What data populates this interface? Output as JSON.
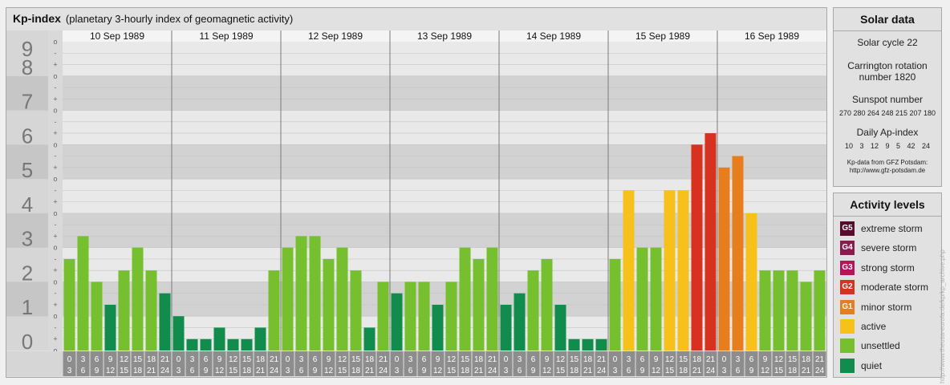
{
  "header": {
    "title": "Kp-index",
    "subtitle": "(planetary 3-hourly index of geomagnetic activity)"
  },
  "chart_data": {
    "type": "bar",
    "title": "Kp-index",
    "subtitle": "(planetary 3-hourly index of geomagnetic activity)",
    "ylim": [
      0,
      9
    ],
    "y_ticks": [
      "0",
      "1",
      "2",
      "3",
      "4",
      "5",
      "6",
      "7",
      "8",
      "9"
    ],
    "sub_ticks": [
      "+",
      "o",
      "-"
    ],
    "days": [
      "10 Sep 1989",
      "11 Sep 1989",
      "12 Sep 1989",
      "13 Sep 1989",
      "14 Sep 1989",
      "15 Sep 1989",
      "16 Sep 1989"
    ],
    "interval_top": [
      "0",
      "3",
      "6",
      "9",
      "12",
      "15",
      "18",
      "21"
    ],
    "interval_bottom": [
      "3",
      "6",
      "9",
      "12",
      "15",
      "18",
      "21",
      "24"
    ],
    "grid": true,
    "values": [
      [
        2.667,
        3.333,
        2.0,
        1.333,
        2.333,
        3.0,
        2.333,
        1.667
      ],
      [
        1.0,
        0.333,
        0.333,
        0.667,
        0.333,
        0.333,
        0.667,
        2.333
      ],
      [
        3.0,
        3.333,
        3.333,
        2.667,
        3.0,
        2.333,
        0.667,
        2.0
      ],
      [
        1.667,
        2.0,
        2.0,
        1.333,
        2.0,
        3.0,
        2.667,
        3.0
      ],
      [
        1.333,
        1.667,
        2.333,
        2.667,
        1.333,
        0.333,
        0.333,
        0.333
      ],
      [
        2.667,
        4.667,
        3.0,
        3.0,
        4.667,
        4.667,
        6.0,
        6.333
      ],
      [
        5.333,
        5.667,
        4.0,
        2.333,
        2.333,
        2.333,
        2.0,
        2.333
      ]
    ],
    "colors": {
      "quiet": "#118c4c",
      "unsettled": "#76bf2f",
      "active": "#f5c11a",
      "G1": "#e87d1e",
      "G2": "#d8311f",
      "G3": "#b8125c",
      "G4": "#8c1a4e",
      "G5": "#5a0a2c"
    }
  },
  "solar_data": {
    "title": "Solar data",
    "solar_cycle": "Solar cycle 22",
    "carrington_line1": "Carrington rotation",
    "carrington_line2": "number 1820",
    "sunspot_label": "Sunspot number",
    "sunspot_values": "270 280 264 248 215 207 180",
    "ap_label": "Daily Ap-index",
    "ap_values": "10 3 12 9 5 42 24",
    "credit_line1": "Kp-data from GFZ Potsdam:",
    "credit_line2": "http://www.gfz-potsdam.de"
  },
  "activity_levels": {
    "title": "Activity levels",
    "items": [
      {
        "code": "G5",
        "label": "extreme storm",
        "color": "#5a0a2c"
      },
      {
        "code": "G4",
        "label": "severe storm",
        "color": "#8c1a4e"
      },
      {
        "code": "G3",
        "label": "strong storm",
        "color": "#b8125c"
      },
      {
        "code": "G2",
        "label": "moderate storm",
        "color": "#d8311f"
      },
      {
        "code": "G1",
        "label": "minor storm",
        "color": "#e87d1e"
      },
      {
        "code": "",
        "label": "active",
        "color": "#f5c11a"
      },
      {
        "code": "",
        "label": "unsettled",
        "color": "#76bf2f"
      },
      {
        "code": "",
        "label": "quiet",
        "color": "#118c4c"
      }
    ]
  },
  "side_credit": "http://www.theusa-eurofa.de/kp/kp_archive.php"
}
